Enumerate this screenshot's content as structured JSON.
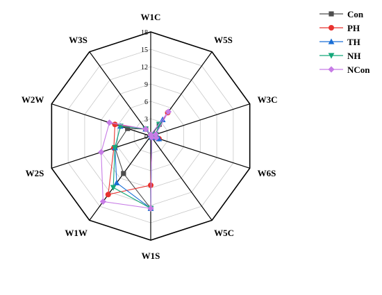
{
  "chart_data": {
    "type": "radar",
    "title": "",
    "axes": [
      "W1C",
      "W5S",
      "W3C",
      "W6S",
      "W5C",
      "W1S",
      "W1W",
      "W2S",
      "W2W",
      "W3S"
    ],
    "rlim": [
      0,
      18
    ],
    "ticks": [
      0,
      3,
      6,
      9,
      12,
      15,
      18
    ],
    "grid": true,
    "legend_position": "top-right",
    "series": [
      {
        "name": "Con",
        "color": "#4d4d4d",
        "marker": "square",
        "values": [
          0.2,
          2.5,
          0.9,
          0.9,
          0.3,
          12.5,
          8.0,
          6.5,
          4.2,
          1.5
        ]
      },
      {
        "name": "PH",
        "color": "#e8322f",
        "marker": "circle",
        "values": [
          0.2,
          5.0,
          0.9,
          1.5,
          0.3,
          8.5,
          12.5,
          6.7,
          6.5,
          1.5
        ]
      },
      {
        "name": "TH",
        "color": "#1a6fd6",
        "marker": "triangle-up",
        "values": [
          0.2,
          3.5,
          0.9,
          1.5,
          0.3,
          12.5,
          10.0,
          6.5,
          5.5,
          1.5
        ]
      },
      {
        "name": "NH",
        "color": "#15a87a",
        "marker": "triangle-down",
        "values": [
          0.2,
          2.5,
          0.9,
          0.9,
          0.3,
          12.5,
          11.0,
          6.5,
          5.5,
          1.5
        ]
      },
      {
        "name": "NCon",
        "color": "#c77ce6",
        "marker": "diamond",
        "values": [
          0.2,
          5.2,
          0.9,
          1.0,
          0.3,
          12.5,
          14.0,
          9.0,
          7.5,
          1.5
        ]
      }
    ]
  }
}
